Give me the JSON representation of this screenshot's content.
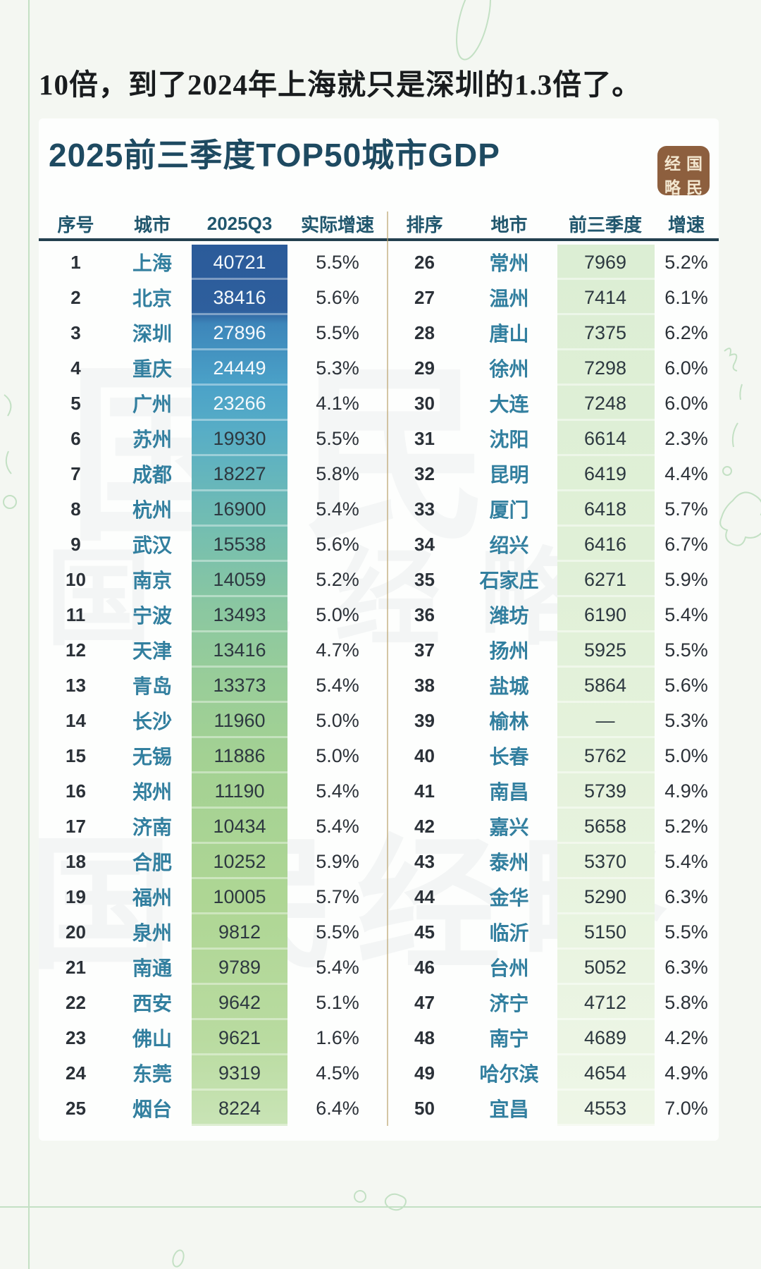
{
  "page": {
    "headline": "10倍，到了2024年上海就只是深圳的1.3倍了。"
  },
  "card": {
    "title": "2025前三季度TOP50城市GDP",
    "watermark_text": "国民经略",
    "watermark_text_short": "国民",
    "logo": {
      "top_left": "经",
      "top_right": "国",
      "bottom_left": "略",
      "bottom_right": "民"
    }
  },
  "colors": {
    "title": "#1e4a61",
    "header_text": "#20566d",
    "city_text": "#327f9f",
    "band_top_blue": "#2b5b9a",
    "band_mid_teal": "#6ebcb4",
    "band_bottom_green": "#c9e4b6",
    "right_band_green": "#e0f0d7",
    "logo_bg": "#8d5f3e",
    "logo_fg": "#f3e7d0",
    "doodle_green": "#9ccf9f"
  },
  "chart_data": {
    "type": "table",
    "title": "2025前三季度TOP50城市GDP",
    "columns": [
      "序号",
      "城市",
      "2025Q3",
      "实际增速",
      "排序",
      "地市",
      "前三季度",
      "增速"
    ],
    "rows_left": [
      {
        "rank": "1",
        "city": "上海",
        "value": "40721",
        "growth": "5.5%"
      },
      {
        "rank": "2",
        "city": "北京",
        "value": "38416",
        "growth": "5.6%"
      },
      {
        "rank": "3",
        "city": "深圳",
        "value": "27896",
        "growth": "5.5%"
      },
      {
        "rank": "4",
        "city": "重庆",
        "value": "24449",
        "growth": "5.3%"
      },
      {
        "rank": "5",
        "city": "广州",
        "value": "23266",
        "growth": "4.1%"
      },
      {
        "rank": "6",
        "city": "苏州",
        "value": "19930",
        "growth": "5.5%"
      },
      {
        "rank": "7",
        "city": "成都",
        "value": "18227",
        "growth": "5.8%"
      },
      {
        "rank": "8",
        "city": "杭州",
        "value": "16900",
        "growth": "5.4%"
      },
      {
        "rank": "9",
        "city": "武汉",
        "value": "15538",
        "growth": "5.6%"
      },
      {
        "rank": "10",
        "city": "南京",
        "value": "14059",
        "growth": "5.2%"
      },
      {
        "rank": "11",
        "city": "宁波",
        "value": "13493",
        "growth": "5.0%"
      },
      {
        "rank": "12",
        "city": "天津",
        "value": "13416",
        "growth": "4.7%"
      },
      {
        "rank": "13",
        "city": "青岛",
        "value": "13373",
        "growth": "5.4%"
      },
      {
        "rank": "14",
        "city": "长沙",
        "value": "11960",
        "growth": "5.0%"
      },
      {
        "rank": "15",
        "city": "无锡",
        "value": "11886",
        "growth": "5.0%"
      },
      {
        "rank": "16",
        "city": "郑州",
        "value": "11190",
        "growth": "5.4%"
      },
      {
        "rank": "17",
        "city": "济南",
        "value": "10434",
        "growth": "5.4%"
      },
      {
        "rank": "18",
        "city": "合肥",
        "value": "10252",
        "growth": "5.9%"
      },
      {
        "rank": "19",
        "city": "福州",
        "value": "10005",
        "growth": "5.7%"
      },
      {
        "rank": "20",
        "city": "泉州",
        "value": "9812",
        "growth": "5.5%"
      },
      {
        "rank": "21",
        "city": "南通",
        "value": "9789",
        "growth": "5.4%"
      },
      {
        "rank": "22",
        "city": "西安",
        "value": "9642",
        "growth": "5.1%"
      },
      {
        "rank": "23",
        "city": "佛山",
        "value": "9621",
        "growth": "1.6%"
      },
      {
        "rank": "24",
        "city": "东莞",
        "value": "9319",
        "growth": "4.5%"
      },
      {
        "rank": "25",
        "city": "烟台",
        "value": "8224",
        "growth": "6.4%"
      }
    ],
    "rows_right": [
      {
        "rank": "26",
        "city": "常州",
        "value": "7969",
        "growth": "5.2%"
      },
      {
        "rank": "27",
        "city": "温州",
        "value": "7414",
        "growth": "6.1%"
      },
      {
        "rank": "28",
        "city": "唐山",
        "value": "7375",
        "growth": "6.2%"
      },
      {
        "rank": "29",
        "city": "徐州",
        "value": "7298",
        "growth": "6.0%"
      },
      {
        "rank": "30",
        "city": "大连",
        "value": "7248",
        "growth": "6.0%"
      },
      {
        "rank": "31",
        "city": "沈阳",
        "value": "6614",
        "growth": "2.3%"
      },
      {
        "rank": "32",
        "city": "昆明",
        "value": "6419",
        "growth": "4.4%"
      },
      {
        "rank": "33",
        "city": "厦门",
        "value": "6418",
        "growth": "5.7%"
      },
      {
        "rank": "34",
        "city": "绍兴",
        "value": "6416",
        "growth": "6.7%"
      },
      {
        "rank": "35",
        "city": "石家庄",
        "value": "6271",
        "growth": "5.9%"
      },
      {
        "rank": "36",
        "city": "潍坊",
        "value": "6190",
        "growth": "5.4%"
      },
      {
        "rank": "37",
        "city": "扬州",
        "value": "5925",
        "growth": "5.5%"
      },
      {
        "rank": "38",
        "city": "盐城",
        "value": "5864",
        "growth": "5.6%"
      },
      {
        "rank": "39",
        "city": "榆林",
        "value": "—",
        "growth": "5.3%"
      },
      {
        "rank": "40",
        "city": "长春",
        "value": "5762",
        "growth": "5.0%"
      },
      {
        "rank": "41",
        "city": "南昌",
        "value": "5739",
        "growth": "4.9%"
      },
      {
        "rank": "42",
        "city": "嘉兴",
        "value": "5658",
        "growth": "5.2%"
      },
      {
        "rank": "43",
        "city": "泰州",
        "value": "5370",
        "growth": "5.4%"
      },
      {
        "rank": "44",
        "city": "金华",
        "value": "5290",
        "growth": "6.3%"
      },
      {
        "rank": "45",
        "city": "临沂",
        "value": "5150",
        "growth": "5.5%"
      },
      {
        "rank": "46",
        "city": "台州",
        "value": "5052",
        "growth": "6.3%"
      },
      {
        "rank": "47",
        "city": "济宁",
        "value": "4712",
        "growth": "5.8%"
      },
      {
        "rank": "48",
        "city": "南宁",
        "value": "4689",
        "growth": "4.2%"
      },
      {
        "rank": "49",
        "city": "哈尔滨",
        "value": "4654",
        "growth": "4.9%"
      },
      {
        "rank": "50",
        "city": "宜昌",
        "value": "4553",
        "growth": "7.0%"
      }
    ]
  }
}
